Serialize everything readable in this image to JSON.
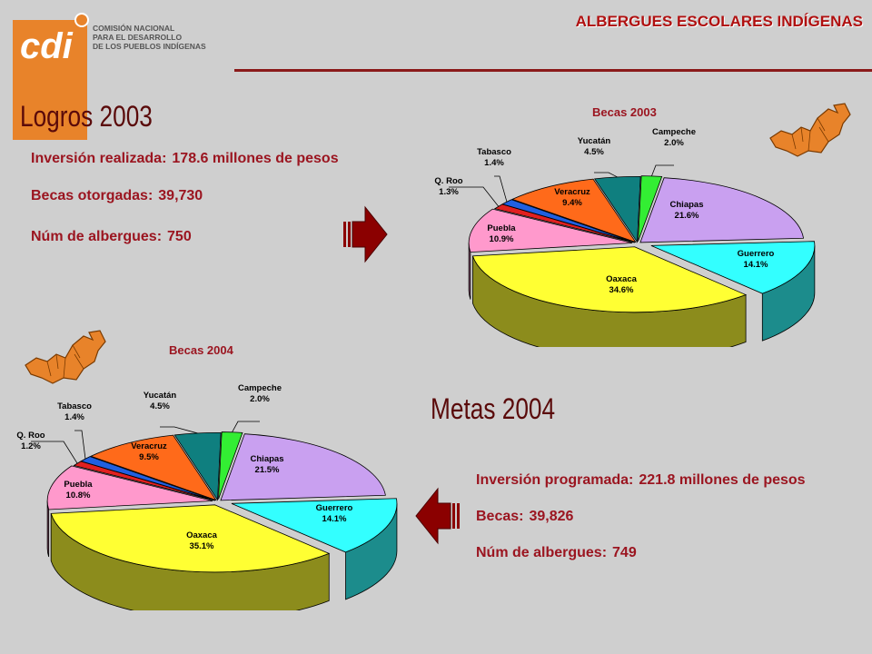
{
  "header": {
    "title": "ALBERGUES ESCOLARES INDÍGENAS",
    "logo": {
      "mark": "cdi",
      "name_lines": [
        "COMISIÓN NACIONAL",
        "PARA EL DESARROLLO",
        "DE LOS PUEBLOS INDÍGENAS"
      ]
    }
  },
  "logros": {
    "title": "Logros 2003",
    "stats": [
      {
        "label": "Inversión realizada:",
        "value": "178.6 millones de pesos"
      },
      {
        "label": "Becas otorgadas:",
        "value": "39,730"
      },
      {
        "label": "Núm de albergues:",
        "value": "750"
      }
    ]
  },
  "metas": {
    "title": "Metas 2004",
    "stats": [
      {
        "label": "Inversión programada:",
        "value": "221.8 millones de pesos"
      },
      {
        "label": "Becas:",
        "value": "39,826"
      },
      {
        "label": "Núm de albergues:",
        "value": "749"
      }
    ]
  },
  "icons": {
    "right_arrow": "right-arrow-icon",
    "left_arrow": "left-arrow-icon",
    "map": "map-icon"
  },
  "colors": {
    "accent": "#9b1520",
    "arrow": "#8b0000",
    "logo_orange": "#e8832a"
  },
  "chart_data": [
    {
      "type": "pie",
      "title": "Becas 2003",
      "series": [
        {
          "values": [
            2.0,
            21.6,
            14.1,
            34.6,
            10.9,
            1.3,
            1.4,
            9.4,
            4.5
          ]
        }
      ],
      "categories": [
        "Campeche",
        "Chiapas",
        "Guerrero",
        "Oaxaca",
        "Puebla",
        "Q. Roo",
        "Tabasco",
        "Veracruz",
        "Yucatán"
      ],
      "data_labels": [
        "2.0%",
        "21.6%",
        "14.1%",
        "34.6%",
        "10.9%",
        "1.3%",
        "1.4%",
        "9.4%",
        "4.5%"
      ],
      "colors": [
        "#33ee33",
        "#c9a0f0",
        "#33ffff",
        "#ffff33",
        "#ff99cc",
        "#e02020",
        "#2060e0",
        "#ff6a1a",
        "#0f7f7f"
      ]
    },
    {
      "type": "pie",
      "title": "Becas 2004",
      "series": [
        {
          "values": [
            2.0,
            21.5,
            14.1,
            35.1,
            10.8,
            1.2,
            1.4,
            9.5,
            4.5
          ]
        }
      ],
      "categories": [
        "Campeche",
        "Chiapas",
        "Guerrero",
        "Oaxaca",
        "Puebla",
        "Q. Roo",
        "Tabasco",
        "Veracruz",
        "Yucatán"
      ],
      "data_labels": [
        "2.0%",
        "21.5%",
        "14.1%",
        "35.1%",
        "10.8%",
        "1.2%",
        "1.4%",
        "9.5%",
        "4.5%"
      ],
      "colors": [
        "#33ee33",
        "#c9a0f0",
        "#33ffff",
        "#ffff33",
        "#ff99cc",
        "#e02020",
        "#2060e0",
        "#ff6a1a",
        "#0f7f7f"
      ]
    }
  ]
}
